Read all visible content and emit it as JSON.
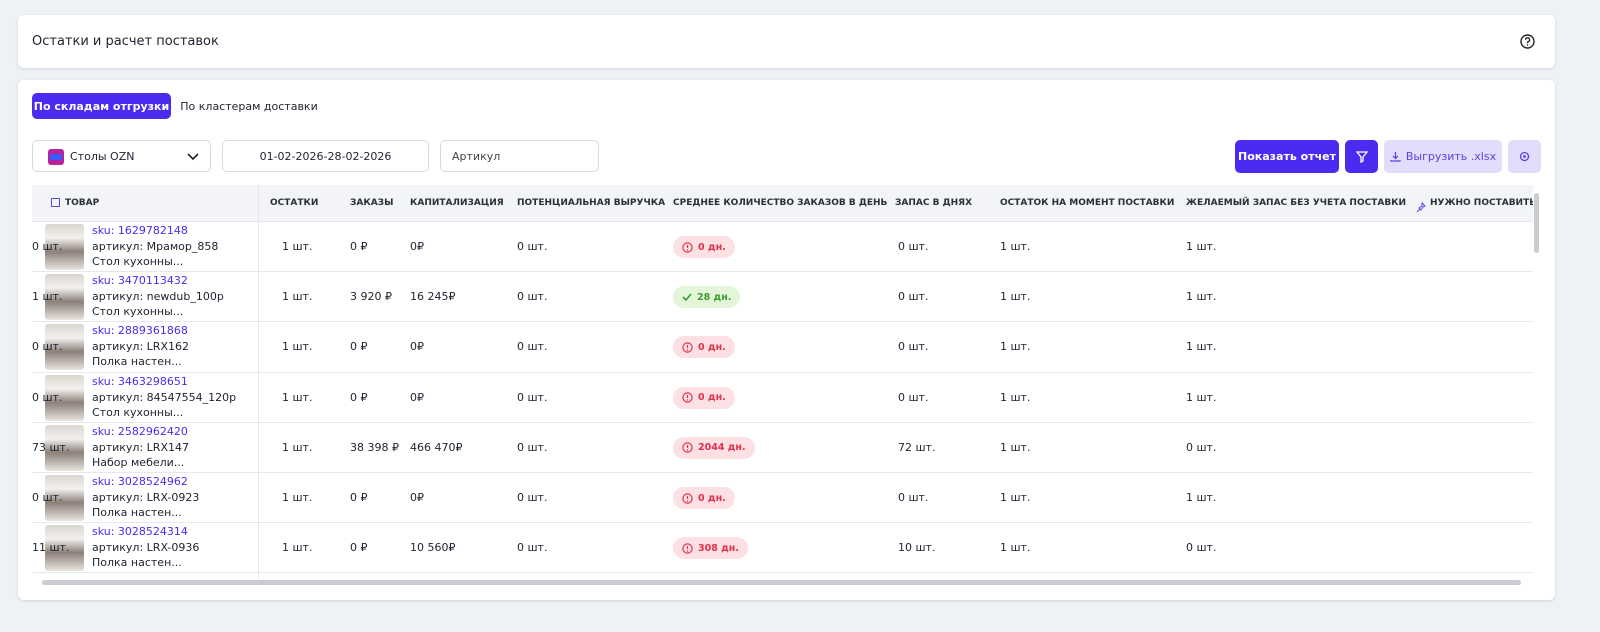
{
  "header": {
    "title": "Остатки и расчет поставок"
  },
  "tabs": [
    {
      "label": "По складам отгрузки",
      "active": true
    },
    {
      "label": "По кластерам доставки",
      "active": false
    }
  ],
  "filters": {
    "store": "Столы OZN",
    "date_range": "01-02-2026-28-02-2026",
    "article_placeholder": "Артикул"
  },
  "buttons": {
    "show_report": "Показать отчет",
    "export": "Выгрузить .xlsx"
  },
  "table": {
    "columns": [
      "ТОВАР",
      "ОСТАТКИ",
      "ЗАКАЗЫ",
      "КАПИТАЛИЗАЦИЯ",
      "ПОТЕНЦИАЛЬНАЯ ВЫРУЧКА",
      "СРЕДНЕЕ КОЛИЧЕСТВО ЗАКАЗОВ В ДЕНЬ",
      "ЗАПАС В ДНЯХ",
      "ОСТАТОК НА МОМЕНТ ПОСТАВКИ",
      "ЖЕЛАЕМЫЙ ЗАПАС БЕЗ УЧЕТА ПОСТАВКИ",
      "НУЖНО ПОСТАВИТЬ"
    ],
    "rows": [
      {
        "sku": "sku: 1629782148",
        "article": "артикул: Мрамор_858",
        "name": "Стол кухонны...",
        "stock_status": "warning",
        "cells": [
          "0 шт.",
          "1 шт.",
          "0 ₽",
          "0₽",
          "0 шт.",
          "0 дн.",
          "0 шт.",
          "1 шт.",
          "1 шт."
        ]
      },
      {
        "sku": "sku: 3470113432",
        "article": "артикул: newdub_100p",
        "name": "Стол кухонны...",
        "stock_status": "ok",
        "cells": [
          "1 шт.",
          "1 шт.",
          "3 920 ₽",
          "16 245₽",
          "0 шт.",
          "28 дн.",
          "0 шт.",
          "1 шт.",
          "1 шт."
        ]
      },
      {
        "sku": "sku: 2889361868",
        "article": "артикул: LRX162",
        "name": "Полка настен...",
        "stock_status": "warning",
        "cells": [
          "0 шт.",
          "1 шт.",
          "0 ₽",
          "0₽",
          "0 шт.",
          "0 дн.",
          "0 шт.",
          "1 шт.",
          "1 шт."
        ]
      },
      {
        "sku": "sku: 3463298651",
        "article": "артикул: 84547554_120p",
        "name": "Стол кухонны...",
        "stock_status": "warning",
        "cells": [
          "0 шт.",
          "1 шт.",
          "0 ₽",
          "0₽",
          "0 шт.",
          "0 дн.",
          "0 шт.",
          "1 шт.",
          "1 шт."
        ]
      },
      {
        "sku": "sku: 2582962420",
        "article": "артикул: LRX147",
        "name": "Набор мебели...",
        "stock_status": "warning",
        "cells": [
          "73 шт.",
          "1 шт.",
          "38 398 ₽",
          "466 470₽",
          "0 шт.",
          "2044 дн.",
          "72 шт.",
          "1 шт.",
          "0 шт."
        ]
      },
      {
        "sku": "sku: 3028524962",
        "article": "артикул: LRX-0923",
        "name": "Полка настен...",
        "stock_status": "warning",
        "cells": [
          "0 шт.",
          "1 шт.",
          "0 ₽",
          "0₽",
          "0 шт.",
          "0 дн.",
          "0 шт.",
          "1 шт.",
          "1 шт."
        ]
      },
      {
        "sku": "sku: 3028524314",
        "article": "артикул: LRX-0936",
        "name": "Полка настен...",
        "stock_status": "warning",
        "cells": [
          "11 шт.",
          "1 шт.",
          "0 ₽",
          "10 560₽",
          "0 шт.",
          "308 дн.",
          "10 шт.",
          "1 шт.",
          "0 шт."
        ]
      }
    ]
  }
}
